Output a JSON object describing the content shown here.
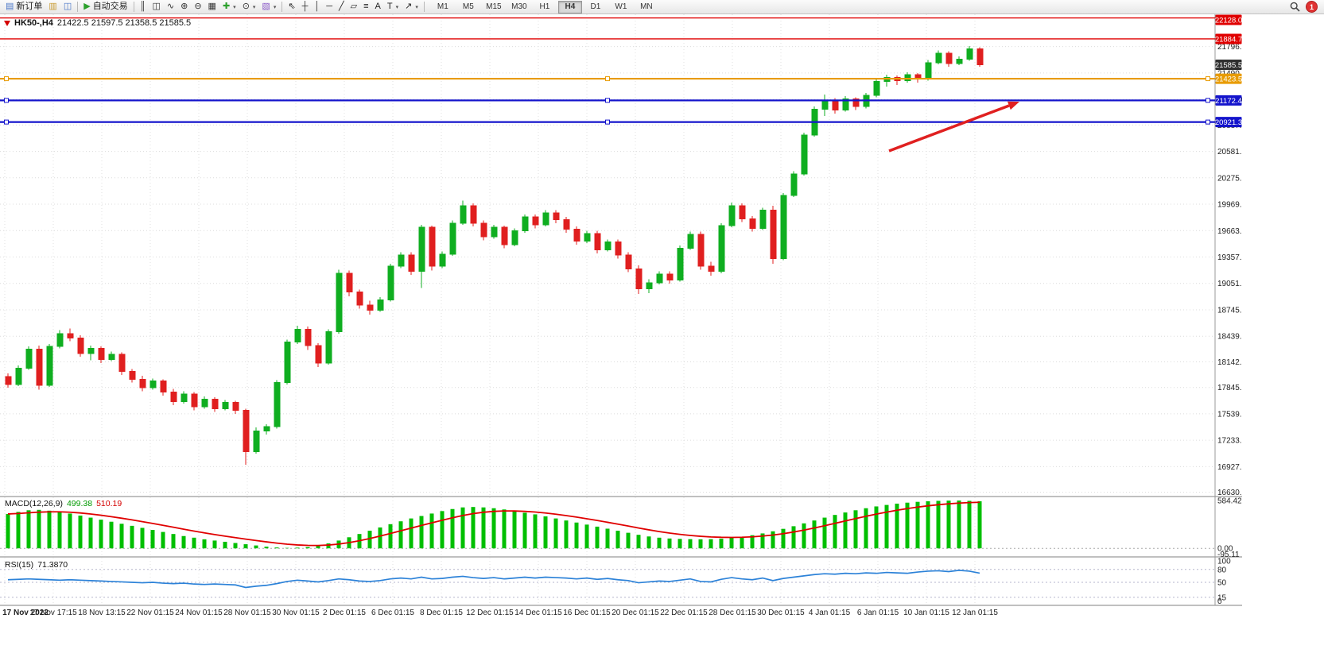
{
  "toolbar": {
    "new_order_label": "新订单",
    "autotrading_label": "自动交易",
    "notification_count": "1",
    "timeframes": [
      "M1",
      "M5",
      "M15",
      "M30",
      "H1",
      "H4",
      "D1",
      "W1",
      "MN"
    ],
    "active_timeframe": "H4",
    "items": [
      {
        "kind": "button",
        "name": "new-order-button",
        "icon": "new-order-icon",
        "glyph": "▤",
        "color": "#4a76c8",
        "label_key": "new_order_label"
      },
      {
        "kind": "button",
        "name": "charts-button",
        "icon": "chart-window-icon",
        "glyph": "▥",
        "color": "#c89a30"
      },
      {
        "kind": "button",
        "name": "navigator-button",
        "icon": "navigator-icon",
        "glyph": "◫",
        "color": "#4a76c8"
      },
      {
        "kind": "sep"
      },
      {
        "kind": "button",
        "name": "autotrading-button",
        "icon": "autotrading-play-icon",
        "glyph": "▶",
        "color": "#2ca02c",
        "label_key": "autotrading_label"
      },
      {
        "kind": "sep"
      },
      {
        "kind": "button",
        "name": "bar-chart-button",
        "icon": "bar-chart-icon",
        "glyph": "║",
        "color": "#333333"
      },
      {
        "kind": "button",
        "name": "candlestick-chart-button",
        "icon": "candlestick-icon",
        "glyph": "◫",
        "color": "#333333"
      },
      {
        "kind": "button",
        "name": "line-chart-button",
        "icon": "line-chart-icon",
        "glyph": "∿",
        "color": "#333333"
      },
      {
        "kind": "button",
        "name": "zoom-in-button",
        "icon": "zoom-in-icon",
        "glyph": "⊕",
        "color": "#333333"
      },
      {
        "kind": "button",
        "name": "zoom-out-button",
        "icon": "zoom-out-icon",
        "glyph": "⊖",
        "color": "#333333"
      },
      {
        "kind": "button",
        "name": "tile-windows-button",
        "icon": "tile-windows-icon",
        "glyph": "▦",
        "color": "#333333"
      },
      {
        "kind": "button",
        "name": "indicators-button",
        "icon": "indicator-plus-icon",
        "glyph": "✚",
        "color": "#2ca02c",
        "dropdown": true
      },
      {
        "kind": "button",
        "name": "periods-button",
        "icon": "clock-icon",
        "glyph": "⊙",
        "color": "#333333",
        "dropdown": true
      },
      {
        "kind": "button",
        "name": "templates-button",
        "icon": "template-icon",
        "glyph": "▧",
        "color": "#8a5ac8",
        "dropdown": true
      },
      {
        "kind": "sep"
      },
      {
        "kind": "button",
        "name": "cursor-button",
        "icon": "cursor-icon",
        "glyph": "⇖",
        "color": "#222222"
      },
      {
        "kind": "button",
        "name": "crosshair-button",
        "icon": "crosshair-icon",
        "glyph": "┼",
        "color": "#222222"
      },
      {
        "kind": "button",
        "name": "vertical-line-button",
        "icon": "vertical-line-icon",
        "glyph": "│",
        "color": "#222222"
      },
      {
        "kind": "button",
        "name": "horizontal-line-button",
        "icon": "horizontal-line-icon",
        "glyph": "─",
        "color": "#222222"
      },
      {
        "kind": "button",
        "name": "trendline-button",
        "icon": "trendline-icon",
        "glyph": "╱",
        "color": "#222222"
      },
      {
        "kind": "button",
        "name": "channel-button",
        "icon": "channel-icon",
        "glyph": "▱",
        "color": "#222222"
      },
      {
        "kind": "button",
        "name": "fibonacci-button",
        "icon": "fibonacci-icon",
        "glyph": "≡",
        "color": "#222222"
      },
      {
        "kind": "button",
        "name": "text-button",
        "icon": "text-icon",
        "glyph": "A",
        "color": "#222222"
      },
      {
        "kind": "button",
        "name": "label-button",
        "icon": "text-label-icon",
        "glyph": "T",
        "color": "#222222",
        "dropdown": true
      },
      {
        "kind": "button",
        "name": "arrows-button",
        "icon": "arrow-object-icon",
        "glyph": "↗",
        "color": "#222222",
        "dropdown": true
      },
      {
        "kind": "sep"
      }
    ]
  },
  "chart": {
    "header": {
      "symbol": "HK50-,H4",
      "ohlc": "21422.5 21597.5 21358.5 21585.5"
    }
  },
  "chart_data": {
    "type": "candlestick",
    "symbol": "HK50-",
    "period": "H4",
    "current_bar": {
      "open": 21422.5,
      "high": 21597.5,
      "low": 21358.5,
      "close": 21585.5
    },
    "ylim": [
      16590,
      22170
    ],
    "up_color": "#0fae20",
    "down_color": "#e01f1f",
    "price_axis_labels": [
      "21796.0",
      "21490.0",
      "21184.0",
      "20887.0",
      "20581.0",
      "20275.0",
      "19969.0",
      "19663.0",
      "19357.0",
      "19051.0",
      "18745.0",
      "18439.0",
      "18142.0",
      "17845.0",
      "17539.0",
      "17233.0",
      "16927.0",
      "16630.0"
    ],
    "horizontal_lines": [
      {
        "price": 22128.0,
        "label": "22128.0",
        "color": "#e00000",
        "width": 1.4,
        "handles": false
      },
      {
        "price": 21884.7,
        "label": "21884.7",
        "color": "#e00000",
        "width": 1.4,
        "handles": false
      },
      {
        "price": 21423.5,
        "label": "21423.5",
        "color": "#e89b00",
        "width": 2.2,
        "handles": true
      },
      {
        "price": 21172.4,
        "label": "21172.4",
        "color": "#1414cc",
        "width": 2.2,
        "handles": true
      },
      {
        "price": 20921.3,
        "label": "20921.3",
        "color": "#1414cc",
        "width": 2.2,
        "handles": true
      }
    ],
    "last_price_badge": {
      "price": 21585.5,
      "label": "21585.5",
      "color": "#2f2f2f"
    },
    "time_axis_labels": [
      "17 Nov 2022",
      "17 Nov 17:15",
      "18 Nov 13:15",
      "22 Nov 01:15",
      "24 Nov 01:15",
      "28 Nov 01:15",
      "30 Nov 01:15",
      "2 Dec 01:15",
      "6 Dec 01:15",
      "8 Dec 01:15",
      "12 Dec 01:15",
      "14 Dec 01:15",
      "16 Dec 01:15",
      "20 Dec 01:15",
      "22 Dec 01:15",
      "28 Dec 01:15",
      "30 Dec 01:15",
      "4 Jan 01:15",
      "6 Jan 01:15",
      "10 Jan 01:15",
      "12 Jan 01:15"
    ],
    "candles": [
      [
        17970,
        18010,
        17840,
        17880
      ],
      [
        17880,
        18100,
        17860,
        18070
      ],
      [
        18070,
        18320,
        18050,
        18290
      ],
      [
        18290,
        18330,
        17820,
        17870
      ],
      [
        17870,
        18350,
        17850,
        18320
      ],
      [
        18320,
        18510,
        18300,
        18470
      ],
      [
        18470,
        18530,
        18380,
        18420
      ],
      [
        18420,
        18450,
        18200,
        18240
      ],
      [
        18240,
        18330,
        18160,
        18300
      ],
      [
        18300,
        18320,
        18130,
        18170
      ],
      [
        18170,
        18260,
        18150,
        18230
      ],
      [
        18230,
        18250,
        17990,
        18030
      ],
      [
        18030,
        18060,
        17900,
        17940
      ],
      [
        17940,
        17980,
        17800,
        17840
      ],
      [
        17840,
        17950,
        17820,
        17920
      ],
      [
        17920,
        17940,
        17750,
        17790
      ],
      [
        17790,
        17830,
        17640,
        17680
      ],
      [
        17680,
        17800,
        17660,
        17770
      ],
      [
        17770,
        17790,
        17580,
        17620
      ],
      [
        17620,
        17740,
        17600,
        17710
      ],
      [
        17710,
        17730,
        17560,
        17600
      ],
      [
        17600,
        17700,
        17580,
        17670
      ],
      [
        17670,
        17690,
        17540,
        17580
      ],
      [
        17580,
        17600,
        16950,
        17100
      ],
      [
        17100,
        17380,
        17080,
        17340
      ],
      [
        17340,
        17420,
        17300,
        17390
      ],
      [
        17390,
        17930,
        17370,
        17900
      ],
      [
        17900,
        18400,
        17880,
        18370
      ],
      [
        18370,
        18560,
        18350,
        18520
      ],
      [
        18520,
        18550,
        18280,
        18330
      ],
      [
        18330,
        18360,
        18080,
        18130
      ],
      [
        18130,
        18520,
        18110,
        18490
      ],
      [
        18490,
        19210,
        18470,
        19170
      ],
      [
        19170,
        19200,
        18900,
        18950
      ],
      [
        18950,
        18980,
        18760,
        18800
      ],
      [
        18800,
        18850,
        18690,
        18740
      ],
      [
        18740,
        18890,
        18720,
        18860
      ],
      [
        18860,
        19280,
        18840,
        19250
      ],
      [
        19250,
        19410,
        19230,
        19380
      ],
      [
        19380,
        19410,
        19150,
        19190
      ],
      [
        19190,
        19730,
        19000,
        19700
      ],
      [
        19700,
        19720,
        19200,
        19250
      ],
      [
        19250,
        19420,
        19230,
        19390
      ],
      [
        19390,
        19780,
        19370,
        19750
      ],
      [
        19750,
        20010,
        19730,
        19950
      ],
      [
        19950,
        19980,
        19710,
        19750
      ],
      [
        19750,
        19780,
        19550,
        19590
      ],
      [
        19590,
        19730,
        19570,
        19700
      ],
      [
        19700,
        19720,
        19460,
        19500
      ],
      [
        19500,
        19690,
        19480,
        19660
      ],
      [
        19660,
        19850,
        19640,
        19820
      ],
      [
        19820,
        19850,
        19690,
        19730
      ],
      [
        19730,
        19900,
        19710,
        19870
      ],
      [
        19870,
        19900,
        19750,
        19790
      ],
      [
        19790,
        19820,
        19640,
        19680
      ],
      [
        19680,
        19710,
        19500,
        19540
      ],
      [
        19540,
        19660,
        19520,
        19630
      ],
      [
        19630,
        19660,
        19400,
        19440
      ],
      [
        19440,
        19560,
        19420,
        19530
      ],
      [
        19530,
        19560,
        19340,
        19380
      ],
      [
        19380,
        19410,
        19180,
        19220
      ],
      [
        19220,
        19260,
        18930,
        18990
      ],
      [
        18990,
        19100,
        18940,
        19060
      ],
      [
        19060,
        19190,
        19040,
        19160
      ],
      [
        19160,
        19190,
        19050,
        19090
      ],
      [
        19090,
        19490,
        19070,
        19460
      ],
      [
        19460,
        19650,
        19440,
        19620
      ],
      [
        19620,
        19650,
        19210,
        19250
      ],
      [
        19250,
        19300,
        19140,
        19190
      ],
      [
        19190,
        19750,
        19170,
        19720
      ],
      [
        19720,
        19990,
        19700,
        19950
      ],
      [
        19950,
        19980,
        19760,
        19800
      ],
      [
        19800,
        19830,
        19650,
        19690
      ],
      [
        19690,
        19930,
        19670,
        19900
      ],
      [
        19900,
        19950,
        19280,
        19340
      ],
      [
        19340,
        20100,
        19320,
        20070
      ],
      [
        20070,
        20350,
        20050,
        20320
      ],
      [
        20320,
        20800,
        20300,
        20770
      ],
      [
        20770,
        21100,
        20750,
        21070
      ],
      [
        21070,
        21240,
        20990,
        21170
      ],
      [
        21170,
        21200,
        21020,
        21060
      ],
      [
        21060,
        21220,
        21040,
        21190
      ],
      [
        21190,
        21210,
        21060,
        21100
      ],
      [
        21100,
        21260,
        21080,
        21230
      ],
      [
        21230,
        21420,
        21210,
        21390
      ],
      [
        21390,
        21470,
        21330,
        21440
      ],
      [
        21440,
        21460,
        21350,
        21400
      ],
      [
        21400,
        21500,
        21380,
        21470
      ],
      [
        21470,
        21490,
        21380,
        21420
      ],
      [
        21420,
        21640,
        21400,
        21610
      ],
      [
        21610,
        21750,
        21590,
        21720
      ],
      [
        21720,
        21740,
        21560,
        21600
      ],
      [
        21600,
        21680,
        21580,
        21650
      ],
      [
        21650,
        21800,
        21630,
        21770
      ],
      [
        21770,
        21790,
        21560,
        21585.5
      ]
    ],
    "macd": {
      "title": "MACD(12,26,9)",
      "value_main": "499.38",
      "value_signal": "510.19",
      "ylim": [
        -95.11,
        584.42
      ],
      "scale_labels": [
        {
          "text": "584.42",
          "v": 584.42
        },
        {
          "text": "0.00",
          "v": 0
        },
        {
          "text": "-95.11",
          "v": -95.11
        }
      ],
      "hist_color": "#00bf00",
      "signal_color": "#e00000",
      "histogram": [
        420,
        445,
        465,
        470,
        460,
        445,
        425,
        400,
        375,
        350,
        325,
        300,
        275,
        250,
        225,
        200,
        175,
        150,
        130,
        110,
        95,
        80,
        65,
        50,
        35,
        20,
        10,
        5,
        8,
        15,
        30,
        60,
        95,
        135,
        175,
        215,
        255,
        295,
        330,
        365,
        395,
        425,
        455,
        480,
        500,
        505,
        500,
        490,
        475,
        455,
        435,
        415,
        390,
        365,
        340,
        315,
        290,
        265,
        240,
        215,
        190,
        165,
        145,
        130,
        120,
        115,
        112,
        110,
        112,
        118,
        128,
        142,
        160,
        182,
        208,
        238,
        270,
        305,
        340,
        375,
        408,
        438,
        465,
        490,
        512,
        530,
        546,
        558,
        568,
        575,
        580,
        583,
        584,
        580,
        575
      ]
    },
    "rsi": {
      "title": "RSI(15)",
      "value": "71.3870",
      "ylim": [
        0,
        100
      ],
      "levels": [
        80,
        50,
        15
      ],
      "scale_labels": [
        {
          "text": "100",
          "v": 100
        },
        {
          "text": "80",
          "v": 80
        },
        {
          "text": "50",
          "v": 50
        },
        {
          "text": "15",
          "v": 15
        },
        {
          "text": "0",
          "v": 0
        }
      ],
      "line_color": "#2c82d8",
      "values": [
        56,
        57,
        58,
        57,
        56,
        55,
        56,
        55,
        54,
        53,
        52,
        51,
        50,
        49,
        50,
        48,
        47,
        48,
        46,
        45,
        46,
        45,
        44,
        38,
        41,
        43,
        47,
        52,
        55,
        53,
        51,
        54,
        58,
        56,
        53,
        52,
        54,
        58,
        60,
        58,
        62,
        58,
        59,
        62,
        64,
        61,
        59,
        61,
        58,
        60,
        62,
        60,
        62,
        61,
        60,
        58,
        60,
        57,
        59,
        56,
        54,
        49,
        51,
        53,
        52,
        55,
        58,
        52,
        51,
        57,
        61,
        58,
        56,
        60,
        54,
        59,
        62,
        65,
        68,
        70,
        69,
        71,
        70,
        72,
        71,
        73,
        72,
        71,
        74,
        76,
        77,
        75,
        78,
        76,
        71.39
      ]
    },
    "annotations": [
      {
        "type": "arrow",
        "color": "#e02020",
        "from": [
          1118,
          172
        ],
        "to": [
          1282,
          110
        ]
      }
    ]
  }
}
